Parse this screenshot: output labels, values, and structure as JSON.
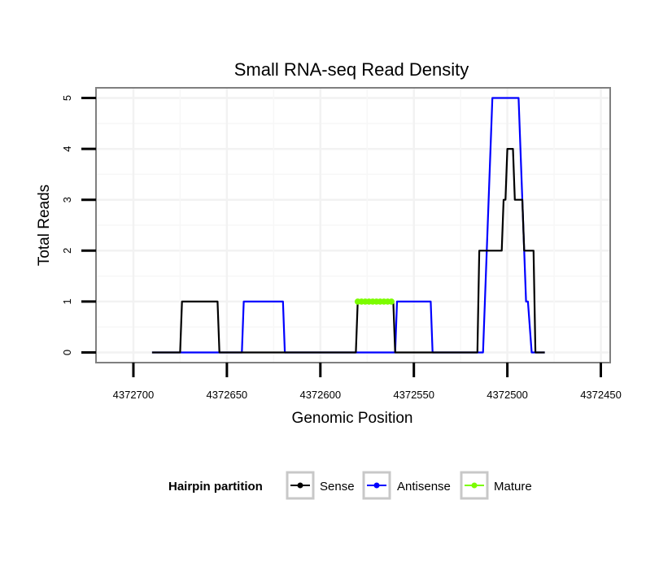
{
  "chart_data": {
    "type": "line",
    "title": "Small RNA-seq Read Density",
    "xlabel": "Genomic Position",
    "ylabel": "Total Reads",
    "xlim": [
      4372720,
      4372445
    ],
    "ylim": [
      -0.2,
      5.2
    ],
    "x_reversed": true,
    "x_ticks": [
      4372700,
      4372650,
      4372600,
      4372550,
      4372500,
      4372450
    ],
    "x_tick_labels": [
      "4372700",
      "4372650",
      "4372600",
      "4372550",
      "4372500",
      "4372450"
    ],
    "y_ticks": [
      0,
      1,
      2,
      3,
      4,
      5
    ],
    "y_tick_labels": [
      "0",
      "1",
      "2",
      "3",
      "4",
      "5"
    ],
    "grid": true,
    "legend": {
      "title": "Hairpin partition",
      "position": "bottom",
      "entries": [
        "Sense",
        "Antisense",
        "Mature"
      ]
    },
    "series": [
      {
        "name": "Sense",
        "color": "#000000",
        "points": [
          [
            4372690,
            0
          ],
          [
            4372675,
            0
          ],
          [
            4372674,
            1
          ],
          [
            4372670,
            1
          ],
          [
            4372655,
            1
          ],
          [
            4372654,
            0
          ],
          [
            4372635,
            0
          ],
          [
            4372620,
            0
          ],
          [
            4372600,
            0
          ],
          [
            4372581,
            0
          ],
          [
            4372580,
            1
          ],
          [
            4372570,
            1
          ],
          [
            4372561,
            1
          ],
          [
            4372560,
            0
          ],
          [
            4372545,
            0
          ],
          [
            4372530,
            0
          ],
          [
            4372516,
            0
          ],
          [
            4372515,
            2
          ],
          [
            4372505,
            2
          ],
          [
            4372503,
            2
          ],
          [
            4372502,
            3
          ],
          [
            4372501,
            3
          ],
          [
            4372500,
            4
          ],
          [
            4372497,
            4
          ],
          [
            4372496,
            3
          ],
          [
            4372492,
            3
          ],
          [
            4372491,
            2
          ],
          [
            4372486,
            2
          ],
          [
            4372485,
            0
          ],
          [
            4372480,
            0
          ]
        ]
      },
      {
        "name": "Antisense",
        "color": "#0000ff",
        "points": [
          [
            4372690,
            0
          ],
          [
            4372675,
            0
          ],
          [
            4372670,
            0
          ],
          [
            4372655,
            0
          ],
          [
            4372642,
            0
          ],
          [
            4372641,
            1
          ],
          [
            4372632,
            1
          ],
          [
            4372620,
            1
          ],
          [
            4372619,
            0
          ],
          [
            4372600,
            0
          ],
          [
            4372580,
            0
          ],
          [
            4372570,
            0
          ],
          [
            4372560,
            0
          ],
          [
            4372559,
            1
          ],
          [
            4372545,
            1
          ],
          [
            4372541,
            1
          ],
          [
            4372540,
            0
          ],
          [
            4372525,
            0
          ],
          [
            4372513,
            0
          ],
          [
            4372510,
            3
          ],
          [
            4372509,
            4
          ],
          [
            4372508,
            5
          ],
          [
            4372494,
            5
          ],
          [
            4372492,
            3
          ],
          [
            4372491,
            2
          ],
          [
            4372490,
            1
          ],
          [
            4372489,
            1
          ],
          [
            4372487,
            0
          ],
          [
            4372480,
            0
          ]
        ]
      },
      {
        "name": "Mature",
        "color": "#7cfc00",
        "points": [
          [
            4372580,
            1
          ],
          [
            4372578,
            1
          ],
          [
            4372576,
            1
          ],
          [
            4372574,
            1
          ],
          [
            4372572,
            1
          ],
          [
            4372570,
            1
          ],
          [
            4372568,
            1
          ],
          [
            4372566,
            1
          ],
          [
            4372564,
            1
          ],
          [
            4372562,
            1
          ]
        ]
      }
    ]
  }
}
